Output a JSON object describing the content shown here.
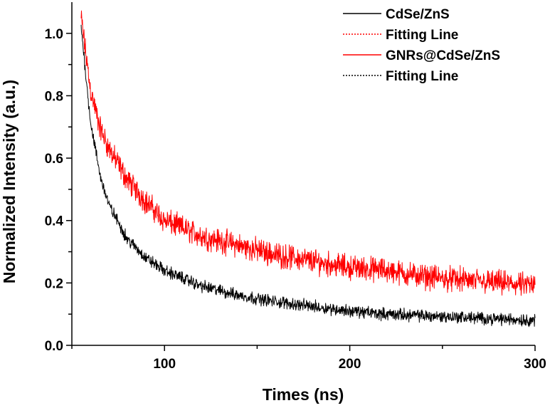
{
  "chart_data": {
    "type": "line",
    "title": "",
    "xlabel": "Times (ns)",
    "ylabel": "Normalized Intensity (a.u.)",
    "xlim": [
      50,
      300
    ],
    "ylim": [
      0.0,
      1.1
    ],
    "x_ticks": [
      100,
      200,
      300
    ],
    "x_tick_labels": [
      "100",
      "200",
      "300"
    ],
    "x_minor_ticks": [
      50,
      150,
      250
    ],
    "y_ticks": [
      0.0,
      0.2,
      0.4,
      0.6,
      0.8,
      1.0
    ],
    "y_tick_labels": [
      "0.0",
      "0.2",
      "0.4",
      "0.6",
      "0.8",
      "1.0"
    ],
    "y_minor_ticks": [
      0.1,
      0.3,
      0.5,
      0.7,
      0.9
    ],
    "grid": false,
    "legend_position": "top-right",
    "legend": [
      {
        "label": "CdSe/ZnS",
        "color": "#000000",
        "style": "solid"
      },
      {
        "label": "Fitting Line",
        "color": "#ff0000",
        "style": "dotted"
      },
      {
        "label": "GNRs@CdSe/ZnS",
        "color": "#ff0000",
        "style": "solid"
      },
      {
        "label": "Fitting Line",
        "color": "#000000",
        "style": "dotted"
      }
    ],
    "series": [
      {
        "name": "GNRs@CdSe/ZnS",
        "color": "#ff0000",
        "x": [
          55,
          60,
          65,
          70,
          80,
          90,
          100,
          120,
          140,
          160,
          180,
          200,
          220,
          240,
          260,
          280,
          300
        ],
        "values": [
          1.05,
          0.82,
          0.7,
          0.63,
          0.53,
          0.46,
          0.4,
          0.35,
          0.32,
          0.29,
          0.27,
          0.25,
          0.24,
          0.22,
          0.21,
          0.2,
          0.19
        ],
        "noise": 0.03
      },
      {
        "name": "CdSe/ZnS",
        "color": "#000000",
        "x": [
          55,
          60,
          65,
          70,
          80,
          90,
          100,
          120,
          140,
          160,
          180,
          200,
          220,
          240,
          260,
          280,
          300
        ],
        "values": [
          1.02,
          0.72,
          0.55,
          0.45,
          0.34,
          0.28,
          0.24,
          0.19,
          0.16,
          0.14,
          0.125,
          0.11,
          0.1,
          0.095,
          0.09,
          0.085,
          0.08
        ],
        "noise": 0.015
      }
    ]
  }
}
